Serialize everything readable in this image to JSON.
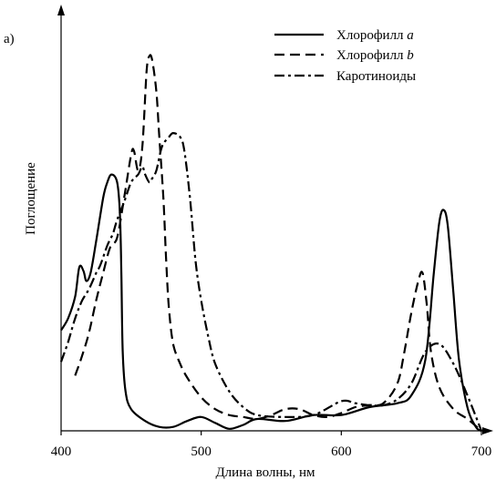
{
  "chart_data": {
    "type": "line",
    "panel_label": "а)",
    "xlabel": "Длина волны, нм",
    "ylabel": "Поглощение",
    "xlim": [
      400,
      700
    ],
    "ylim": [
      0,
      100
    ],
    "x_ticks": [
      400,
      500,
      600,
      700
    ],
    "x_tick_labels": [
      "400",
      "500",
      "600",
      "700"
    ],
    "legend_position": "top-right",
    "series": [
      {
        "name": "Хлорофилл a",
        "name_base": "Хлорофилл ",
        "name_italic": "a",
        "style": "solid",
        "points": [
          [
            400,
            25.5
          ],
          [
            405,
            28.5
          ],
          [
            410,
            34
          ],
          [
            413,
            41.5
          ],
          [
            416,
            40.5
          ],
          [
            418,
            38
          ],
          [
            421,
            40
          ],
          [
            425,
            48
          ],
          [
            430,
            59
          ],
          [
            433,
            63
          ],
          [
            436,
            65
          ],
          [
            440,
            63
          ],
          [
            442,
            55
          ],
          [
            443,
            40
          ],
          [
            444,
            20
          ],
          [
            446,
            10
          ],
          [
            450,
            5.5
          ],
          [
            460,
            2.5
          ],
          [
            470,
            1
          ],
          [
            480,
            1
          ],
          [
            490,
            2.5
          ],
          [
            500,
            3.5
          ],
          [
            510,
            2
          ],
          [
            520,
            0.5
          ],
          [
            530,
            1.5
          ],
          [
            540,
            3
          ],
          [
            560,
            2.5
          ],
          [
            580,
            4
          ],
          [
            600,
            4
          ],
          [
            620,
            6
          ],
          [
            640,
            7
          ],
          [
            650,
            9
          ],
          [
            660,
            18
          ],
          [
            666,
            40
          ],
          [
            670,
            53
          ],
          [
            673,
            56
          ],
          [
            676,
            52
          ],
          [
            680,
            35
          ],
          [
            684,
            18
          ],
          [
            690,
            6
          ],
          [
            696,
            1
          ],
          [
            700,
            0
          ]
        ]
      },
      {
        "name": "Хлорофилл b",
        "name_base": "Хлорофилл ",
        "name_italic": "b",
        "style": "dashed",
        "points": [
          [
            410,
            14
          ],
          [
            415,
            19
          ],
          [
            420,
            25
          ],
          [
            425,
            33
          ],
          [
            430,
            40
          ],
          [
            435,
            46.5
          ],
          [
            440,
            49
          ],
          [
            445,
            59
          ],
          [
            450,
            70
          ],
          [
            452,
            71
          ],
          [
            455,
            66
          ],
          [
            458,
            72
          ],
          [
            461,
            91
          ],
          [
            463,
            95
          ],
          [
            465,
            94
          ],
          [
            468,
            86
          ],
          [
            470,
            75
          ],
          [
            473,
            59
          ],
          [
            475,
            43
          ],
          [
            477,
            31
          ],
          [
            480,
            22
          ],
          [
            485,
            17
          ],
          [
            490,
            13.5
          ],
          [
            500,
            8.5
          ],
          [
            510,
            5.5
          ],
          [
            520,
            4
          ],
          [
            530,
            3.5
          ],
          [
            540,
            3
          ],
          [
            550,
            4
          ],
          [
            560,
            5.5
          ],
          [
            570,
            5.5
          ],
          [
            580,
            4
          ],
          [
            590,
            3.5
          ],
          [
            600,
            4.5
          ],
          [
            610,
            6
          ],
          [
            620,
            6.5
          ],
          [
            630,
            7
          ],
          [
            640,
            12
          ],
          [
            645,
            20
          ],
          [
            650,
            30
          ],
          [
            655,
            38
          ],
          [
            658,
            40
          ],
          [
            661,
            32
          ],
          [
            664,
            20
          ],
          [
            670,
            11
          ],
          [
            680,
            5.5
          ],
          [
            690,
            3
          ],
          [
            700,
            0
          ]
        ]
      },
      {
        "name": "Каротиноиды",
        "style": "dashdot",
        "points": [
          [
            400,
            17.5
          ],
          [
            405,
            22.5
          ],
          [
            410,
            28.5
          ],
          [
            415,
            33
          ],
          [
            420,
            36
          ],
          [
            425,
            40
          ],
          [
            428,
            42
          ],
          [
            433,
            47
          ],
          [
            437,
            50
          ],
          [
            440,
            53.5
          ],
          [
            445,
            58
          ],
          [
            450,
            63
          ],
          [
            455,
            65
          ],
          [
            458,
            67
          ],
          [
            460,
            65
          ],
          [
            463,
            63
          ],
          [
            465,
            64
          ],
          [
            468,
            66
          ],
          [
            472,
            72
          ],
          [
            477,
            74.5
          ],
          [
            480,
            75.5
          ],
          [
            485,
            74.5
          ],
          [
            488,
            71
          ],
          [
            492,
            59
          ],
          [
            496,
            43
          ],
          [
            500,
            33
          ],
          [
            505,
            24
          ],
          [
            510,
            17
          ],
          [
            520,
            10
          ],
          [
            530,
            6
          ],
          [
            540,
            4
          ],
          [
            560,
            3.5
          ],
          [
            580,
            4
          ],
          [
            600,
            7.5
          ],
          [
            610,
            7
          ],
          [
            620,
            6.5
          ],
          [
            630,
            6.5
          ],
          [
            640,
            8
          ],
          [
            650,
            12
          ],
          [
            660,
            20
          ],
          [
            670,
            22
          ],
          [
            680,
            17
          ],
          [
            690,
            9
          ],
          [
            700,
            0
          ]
        ]
      }
    ]
  }
}
